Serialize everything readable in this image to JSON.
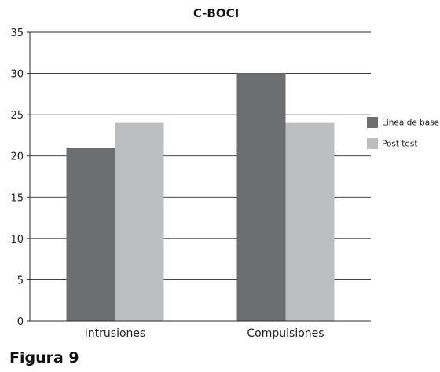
{
  "chart_data": {
    "type": "bar",
    "title": "C-BOCI",
    "categories": [
      "Intrusiones",
      "Compulsiones"
    ],
    "series": [
      {
        "name": "Línea de base",
        "values": [
          21,
          30
        ],
        "color": "#6d6e71"
      },
      {
        "name": "Post test",
        "values": [
          24,
          24
        ],
        "color": "#bcbdc0"
      }
    ],
    "ylim": [
      0,
      35
    ],
    "yticks": [
      0,
      5,
      10,
      15,
      20,
      25,
      30,
      35
    ],
    "grid": true,
    "legend": "right"
  },
  "caption": "Figura 9"
}
